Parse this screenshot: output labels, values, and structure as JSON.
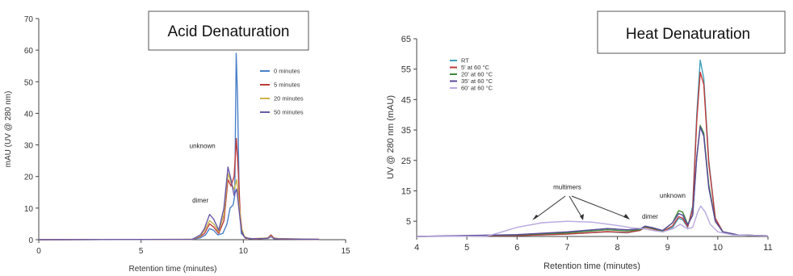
{
  "chart_data": [
    {
      "type": "line",
      "title": "Acid Denaturation",
      "xlabel": "Retention time (minutes)",
      "ylabel": "mAU (UV @ 280 nm)",
      "xlim": [
        0,
        15
      ],
      "ylim": [
        0,
        70
      ],
      "xticks": [
        "0",
        "5",
        "10",
        "15"
      ],
      "yticks": [
        "0",
        "10",
        "20",
        "30",
        "40",
        "50",
        "60",
        "70"
      ],
      "grid": false,
      "legend_position": "top-right",
      "series": [
        {
          "name": "0 minutes",
          "color": "#4a80c8",
          "points": [
            [
              0,
              0
            ],
            [
              7.5,
              0.1
            ],
            [
              7.9,
              0.6
            ],
            [
              8.15,
              1.5
            ],
            [
              8.35,
              3.5
            ],
            [
              8.55,
              3
            ],
            [
              8.75,
              1.5
            ],
            [
              9.0,
              2
            ],
            [
              9.2,
              5
            ],
            [
              9.35,
              10
            ],
            [
              9.5,
              11
            ],
            [
              9.58,
              14
            ],
            [
              9.65,
              59
            ],
            [
              9.72,
              45
            ],
            [
              9.8,
              12
            ],
            [
              9.9,
              2
            ],
            [
              10.1,
              0.5
            ],
            [
              10.6,
              0.2
            ],
            [
              11.2,
              0.6
            ],
            [
              11.35,
              1.5
            ],
            [
              11.5,
              0.5
            ],
            [
              11.8,
              0.2
            ],
            [
              13.7,
              0.1
            ]
          ]
        },
        {
          "name": "5 minutes",
          "color": "#c03a3a",
          "points": [
            [
              0,
              0
            ],
            [
              7.5,
              0.1
            ],
            [
              7.9,
              1
            ],
            [
              8.1,
              2
            ],
            [
              8.35,
              5
            ],
            [
              8.55,
              4
            ],
            [
              8.8,
              2
            ],
            [
              9.05,
              6
            ],
            [
              9.25,
              19
            ],
            [
              9.4,
              17
            ],
            [
              9.55,
              20
            ],
            [
              9.66,
              32
            ],
            [
              9.75,
              22
            ],
            [
              9.85,
              8
            ],
            [
              9.95,
              2
            ],
            [
              10.1,
              0.5
            ],
            [
              10.6,
              0.2
            ],
            [
              11.2,
              0.5
            ],
            [
              11.35,
              1.5
            ],
            [
              11.5,
              0.5
            ],
            [
              11.8,
              0.2
            ],
            [
              13.7,
              0.1
            ]
          ]
        },
        {
          "name": "20 minutes",
          "color": "#c8b44a",
          "points": [
            [
              0,
              0
            ],
            [
              7.5,
              0.1
            ],
            [
              7.9,
              1.2
            ],
            [
              8.1,
              3
            ],
            [
              8.35,
              6
            ],
            [
              8.55,
              5
            ],
            [
              8.8,
              2.5
            ],
            [
              9.05,
              8
            ],
            [
              9.25,
              21
            ],
            [
              9.4,
              18
            ],
            [
              9.55,
              16
            ],
            [
              9.68,
              19
            ],
            [
              9.78,
              12
            ],
            [
              9.9,
              4
            ],
            [
              10.05,
              1
            ],
            [
              10.3,
              0.3
            ],
            [
              11.2,
              0.5
            ],
            [
              11.35,
              1.2
            ],
            [
              11.5,
              0.4
            ],
            [
              13.7,
              0.1
            ]
          ]
        },
        {
          "name": "50 minutes",
          "color": "#6a58a8",
          "points": [
            [
              0,
              0
            ],
            [
              7.5,
              0.1
            ],
            [
              7.9,
              1.5
            ],
            [
              8.1,
              3.5
            ],
            [
              8.35,
              8
            ],
            [
              8.55,
              6.5
            ],
            [
              8.8,
              3
            ],
            [
              9.05,
              10
            ],
            [
              9.25,
              23
            ],
            [
              9.4,
              19
            ],
            [
              9.55,
              14
            ],
            [
              9.68,
              16
            ],
            [
              9.78,
              10
            ],
            [
              9.9,
              3
            ],
            [
              10.05,
              0.8
            ],
            [
              10.3,
              0.3
            ],
            [
              11.2,
              0.4
            ],
            [
              11.35,
              1
            ],
            [
              11.5,
              0.3
            ],
            [
              13.7,
              0.1
            ]
          ]
        }
      ],
      "annotations": [
        {
          "text": "unknown",
          "x": 8.0,
          "y": 29
        },
        {
          "text": "dimer",
          "x": 7.9,
          "y": 11.8
        }
      ]
    },
    {
      "type": "line",
      "title": "Heat Denaturation",
      "xlabel": "Retention time (minutes)",
      "ylabel": "UV @ 280 nm (mAU)",
      "xlim": [
        4,
        11
      ],
      "ylim": [
        0,
        65
      ],
      "xticks": [
        "4",
        "5",
        "6",
        "7",
        "8",
        "9",
        "10",
        "11"
      ],
      "yticks": [
        "5",
        "15",
        "25",
        "35",
        "45",
        "55",
        "65"
      ],
      "ytick_values": [
        5,
        15,
        25,
        35,
        45,
        55,
        65
      ],
      "grid": false,
      "legend_position": "top-left",
      "series": [
        {
          "name": "RT",
          "color": "#3fa0b8",
          "points": [
            [
              4,
              0
            ],
            [
              6,
              0.3
            ],
            [
              7,
              0.8
            ],
            [
              7.8,
              1.5
            ],
            [
              8.2,
              1.2
            ],
            [
              8.45,
              2
            ],
            [
              8.55,
              3
            ],
            [
              8.7,
              2.5
            ],
            [
              8.9,
              1.5
            ],
            [
              9.1,
              3
            ],
            [
              9.22,
              6
            ],
            [
              9.3,
              5.5
            ],
            [
              9.4,
              3
            ],
            [
              9.5,
              10
            ],
            [
              9.58,
              40
            ],
            [
              9.65,
              58
            ],
            [
              9.72,
              52
            ],
            [
              9.82,
              25
            ],
            [
              9.95,
              6
            ],
            [
              10.1,
              1.5
            ],
            [
              10.4,
              0.5
            ],
            [
              11,
              0.2
            ]
          ]
        },
        {
          "name": "5' at 60 °C",
          "color": "#c03a3a",
          "points": [
            [
              4,
              0
            ],
            [
              6,
              0.3
            ],
            [
              7,
              0.8
            ],
            [
              7.8,
              1.6
            ],
            [
              8.2,
              1.3
            ],
            [
              8.45,
              2
            ],
            [
              8.55,
              3
            ],
            [
              8.7,
              2.5
            ],
            [
              8.9,
              1.5
            ],
            [
              9.1,
              3.5
            ],
            [
              9.22,
              6.5
            ],
            [
              9.3,
              6
            ],
            [
              9.4,
              3.2
            ],
            [
              9.5,
              9
            ],
            [
              9.58,
              38
            ],
            [
              9.65,
              54
            ],
            [
              9.72,
              50
            ],
            [
              9.82,
              24
            ],
            [
              9.95,
              6
            ],
            [
              10.1,
              1.5
            ],
            [
              10.4,
              0.5
            ],
            [
              11,
              0.2
            ]
          ]
        },
        {
          "name": "20' at 60 °C",
          "color": "#3a8a3a",
          "points": [
            [
              4,
              0
            ],
            [
              6,
              0.5
            ],
            [
              7,
              1.2
            ],
            [
              7.8,
              2.2
            ],
            [
              8.2,
              1.8
            ],
            [
              8.45,
              2.2
            ],
            [
              8.55,
              3.2
            ],
            [
              8.7,
              2.7
            ],
            [
              8.9,
              1.8
            ],
            [
              9.1,
              4.5
            ],
            [
              9.22,
              8.5
            ],
            [
              9.3,
              8
            ],
            [
              9.4,
              4
            ],
            [
              9.5,
              7
            ],
            [
              9.58,
              26
            ],
            [
              9.65,
              36.5
            ],
            [
              9.72,
              34
            ],
            [
              9.82,
              17
            ],
            [
              9.95,
              5
            ],
            [
              10.1,
              1.5
            ],
            [
              10.4,
              0.5
            ],
            [
              11,
              0.2
            ]
          ]
        },
        {
          "name": "35' at 60 °C",
          "color": "#5a4a9a",
          "points": [
            [
              4,
              0
            ],
            [
              6,
              0.6
            ],
            [
              7,
              1.5
            ],
            [
              7.8,
              2.6
            ],
            [
              8.2,
              2.2
            ],
            [
              8.45,
              2.5
            ],
            [
              8.55,
              3.4
            ],
            [
              8.7,
              2.9
            ],
            [
              8.9,
              2
            ],
            [
              9.1,
              4.5
            ],
            [
              9.22,
              7.5
            ],
            [
              9.3,
              7
            ],
            [
              9.4,
              3.8
            ],
            [
              9.5,
              7
            ],
            [
              9.58,
              26
            ],
            [
              9.65,
              36
            ],
            [
              9.72,
              33
            ],
            [
              9.82,
              16
            ],
            [
              9.95,
              5
            ],
            [
              10.1,
              1.5
            ],
            [
              10.4,
              0.5
            ],
            [
              11,
              0.2
            ]
          ]
        },
        {
          "name": "60' at 60 °C",
          "color": "#b8a8e0",
          "points": [
            [
              4,
              0
            ],
            [
              5.4,
              0.1
            ],
            [
              5.6,
              1
            ],
            [
              6,
              3
            ],
            [
              6.5,
              4.5
            ],
            [
              7,
              5
            ],
            [
              7.5,
              4.7
            ],
            [
              8,
              3.6
            ],
            [
              8.3,
              2.8
            ],
            [
              8.5,
              2.6
            ],
            [
              8.7,
              2
            ],
            [
              8.9,
              1.5
            ],
            [
              9.1,
              2.5
            ],
            [
              9.25,
              4
            ],
            [
              9.4,
              2.5
            ],
            [
              9.5,
              3
            ],
            [
              9.6,
              8
            ],
            [
              9.66,
              10
            ],
            [
              9.75,
              8
            ],
            [
              9.85,
              4
            ],
            [
              10,
              1.5
            ],
            [
              10.3,
              0.5
            ],
            [
              11,
              0.2
            ]
          ]
        }
      ],
      "annotations": [
        {
          "text": "multimers",
          "x": 7.0,
          "y": 15.5
        },
        {
          "text": "dimer",
          "x": 8.65,
          "y": 5.8
        },
        {
          "text": "unknown",
          "x": 9.1,
          "y": 12.8
        }
      ]
    }
  ]
}
